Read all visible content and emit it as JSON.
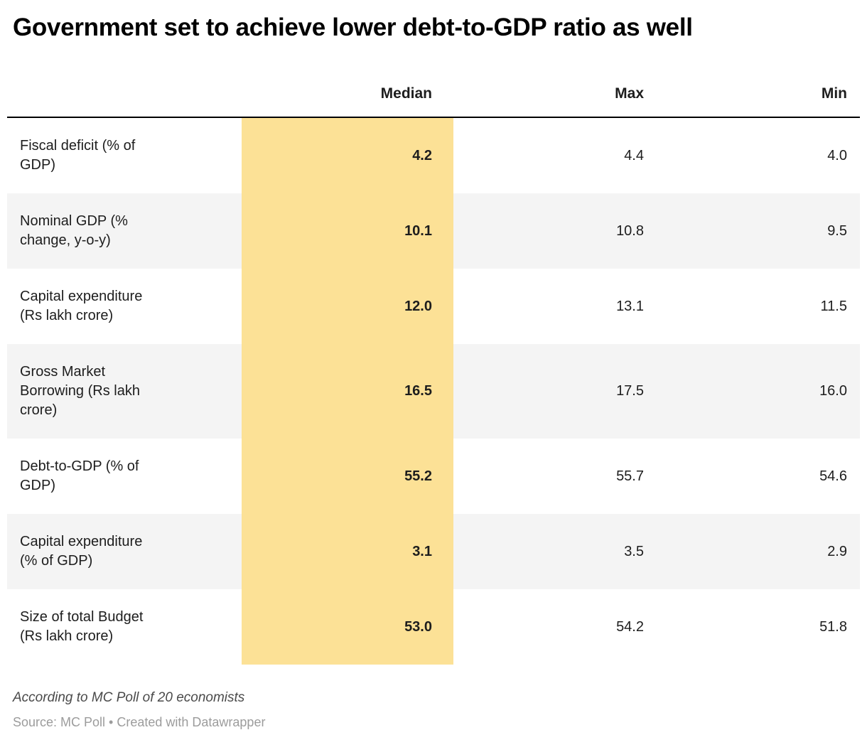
{
  "title": "Government set to achieve lower debt-to-GDP ratio as well",
  "table": {
    "header": {
      "label": "",
      "median": "Median",
      "max": "Max",
      "min": "Min"
    },
    "rows": [
      {
        "label": "Fiscal deficit (% of GDP)",
        "median": "4.2",
        "max": "4.4",
        "min": "4.0"
      },
      {
        "label": "Nominal GDP (% change, y-o-y)",
        "median": "10.1",
        "max": "10.8",
        "min": "9.5"
      },
      {
        "label": "Capital expenditure (Rs lakh crore)",
        "median": "12.0",
        "max": "13.1",
        "min": "11.5"
      },
      {
        "label": "Gross Market Borrowing (Rs lakh crore)",
        "median": "16.5",
        "max": "17.5",
        "min": "16.0"
      },
      {
        "label": "Debt-to-GDP (% of GDP)",
        "median": "55.2",
        "max": "55.7",
        "min": "54.6"
      },
      {
        "label": "Capital expenditure (% of GDP)",
        "median": "3.1",
        "max": "3.5",
        "min": "2.9"
      },
      {
        "label": "Size of total Budget (Rs lakh crore)",
        "median": "53.0",
        "max": "54.2",
        "min": "51.8"
      }
    ]
  },
  "footer": {
    "note": "According to MC Poll of 20 economists",
    "source": "Source: MC Poll • Created with Datawrapper"
  },
  "colors": {
    "highlight": "#fce196",
    "row_alt": "#f4f4f4",
    "header_border": "#000000"
  },
  "chart_data": {
    "type": "table",
    "title": "Government set to achieve lower debt-to-GDP ratio as well",
    "columns": [
      "",
      "Median",
      "Max",
      "Min"
    ],
    "highlighted_column": "Median",
    "rows": [
      {
        "label": "Fiscal deficit (% of GDP)",
        "median": 4.2,
        "max": 4.4,
        "min": 4.0
      },
      {
        "label": "Nominal GDP (% change, y-o-y)",
        "median": 10.1,
        "max": 10.8,
        "min": 9.5
      },
      {
        "label": "Capital expenditure (Rs lakh crore)",
        "median": 12.0,
        "max": 13.1,
        "min": 11.5
      },
      {
        "label": "Gross Market Borrowing (Rs lakh crore)",
        "median": 16.5,
        "max": 17.5,
        "min": 16.0
      },
      {
        "label": "Debt-to-GDP (% of GDP)",
        "median": 55.2,
        "max": 55.7,
        "min": 54.6
      },
      {
        "label": "Capital expenditure (% of GDP)",
        "median": 3.1,
        "max": 3.5,
        "min": 2.9
      },
      {
        "label": "Size of total Budget (Rs lakh crore)",
        "median": 53.0,
        "max": 54.2,
        "min": 51.8
      }
    ],
    "note": "According to MC Poll of 20 economists",
    "source": "Source: MC Poll • Created with Datawrapper"
  }
}
